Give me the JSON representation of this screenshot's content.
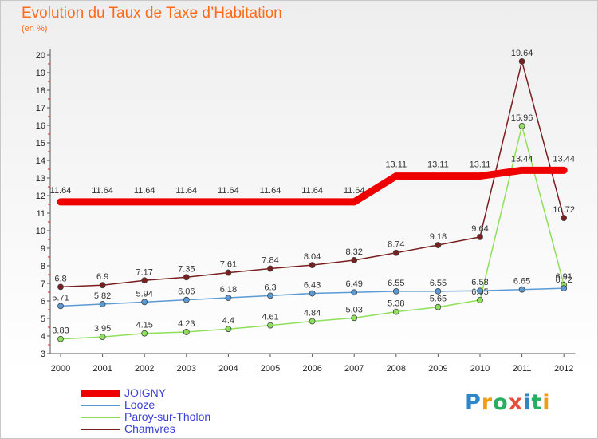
{
  "header": {
    "title": "Evolution du Taux de Taxe d’Habitation",
    "unit": "(en %)"
  },
  "chart_data": {
    "type": "line",
    "x": [
      "2000",
      "2001",
      "2002",
      "2003",
      "2004",
      "2005",
      "2006",
      "2007",
      "2008",
      "2009",
      "2010",
      "2011",
      "2012"
    ],
    "ylim": [
      3,
      20
    ],
    "yticks": [
      3,
      4,
      5,
      6,
      7,
      8,
      9,
      10,
      11,
      12,
      13,
      14,
      15,
      16,
      17,
      18,
      19,
      20
    ],
    "series": [
      {
        "name": "JOIGNY",
        "color": "#ee0000",
        "values": [
          11.64,
          11.64,
          11.64,
          11.64,
          11.64,
          11.64,
          11.64,
          11.64,
          13.11,
          13.11,
          13.11,
          13.44,
          13.44
        ],
        "labels": [
          "11.64",
          "11.64",
          "11.64",
          "11.64",
          "11.64",
          "11.64",
          "11.64",
          "11.64",
          "13.11",
          "13.11",
          "13.11",
          "13.44",
          "13.44"
        ]
      },
      {
        "name": "Looze",
        "color": "#5b9bd5",
        "values": [
          5.71,
          5.82,
          5.94,
          6.06,
          6.18,
          6.3,
          6.43,
          6.49,
          6.55,
          6.55,
          6.58,
          6.65,
          6.72
        ],
        "labels": [
          "5.71",
          "5.82",
          "5.94",
          "6.06",
          "6.18",
          "6.3",
          "6.43",
          "6.49",
          "6.55",
          "6.55",
          "6.58",
          "6.65",
          "6.72"
        ]
      },
      {
        "name": "Paroy-sur-Tholon",
        "color": "#8ee05a",
        "values": [
          3.83,
          3.95,
          4.15,
          4.23,
          4.4,
          4.61,
          4.84,
          5.03,
          5.38,
          5.65,
          6.05,
          15.96,
          6.91
        ],
        "labels": [
          "3.83",
          "3.95",
          "4.15",
          "4.23",
          "4.4",
          "4.61",
          "4.84",
          "5.03",
          "5.38",
          "5.65",
          "6.05",
          "15.96",
          "6.91"
        ]
      },
      {
        "name": "Chamvres",
        "color": "#7a1f1f",
        "values": [
          6.8,
          6.9,
          7.17,
          7.35,
          7.61,
          7.84,
          8.04,
          8.32,
          8.74,
          9.18,
          9.64,
          19.64,
          10.72
        ],
        "labels": [
          "6.8",
          "6.9",
          "7.17",
          "7.35",
          "7.61",
          "7.84",
          "8.04",
          "8.32",
          "8.74",
          "9.18",
          "9.64",
          "19.64",
          "10.72"
        ]
      }
    ],
    "legend_position": "bottom-left",
    "grid": false
  },
  "legend": {
    "items": [
      {
        "label": "JOIGNY",
        "color": "#ee0000"
      },
      {
        "label": "Looze",
        "color": "#5b9bd5"
      },
      {
        "label": "Paroy-sur-Tholon",
        "color": "#8ee05a"
      },
      {
        "label": "Chamvres",
        "color": "#7a1f1f"
      }
    ]
  },
  "logo": {
    "letters": [
      "P",
      "r",
      "o",
      "x",
      "i",
      "t",
      "i"
    ],
    "colors": [
      "#2e86c8",
      "#f39c12",
      "#27ae60",
      "#e74c3c",
      "#2e86c8",
      "#27ae60",
      "#f39c12"
    ]
  }
}
